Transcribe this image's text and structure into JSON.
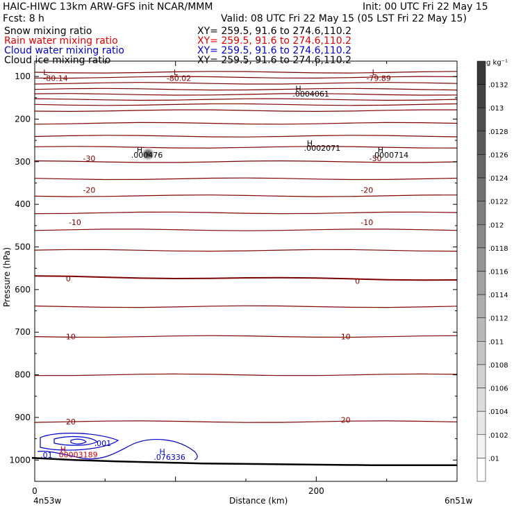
{
  "header": {
    "title": "HAIC-HIWC 13km ARW-GFS init   NCAR/MMM",
    "fcst": "Fcst:    8 h",
    "init": "Init: 00 UTC Fri 22 May 15",
    "valid": "Valid: 08 UTC Fri 22 May 15 (05 LST Fri 22 May 15)"
  },
  "fields": [
    {
      "name": "Snow mixing ratio",
      "xy": "XY= 259.5, 91.6 to 274.6,110.2",
      "color": "#000000"
    },
    {
      "name": "Rain water mixing ratio",
      "xy": "XY= 259.5, 91.6 to 274.6,110.2",
      "color": "#dd0000"
    },
    {
      "name": "Cloud water mixing ratio",
      "xy": "XY= 259.5, 91.6 to 274.6,110.2",
      "color": "#0000cc"
    },
    {
      "name": "Cloud ice mixing ratio",
      "xy": "XY= 259.5, 91.6 to 274.6,110.2",
      "color": "#000000"
    }
  ],
  "colors": {
    "temperature_contour": "#800000",
    "cloud_water_contour": "#0000cc",
    "rain_label": "#cc0000",
    "terrain": "#000000"
  },
  "chart_data": {
    "type": "cross-section",
    "xlabel": "Distance (km)",
    "ylabel": "Pressure (hPa)",
    "xlim": [
      0,
      300
    ],
    "ylim": [
      1050,
      50
    ],
    "x_ticks": [
      0,
      200
    ],
    "y_ticks": [
      100,
      200,
      300,
      400,
      500,
      600,
      700,
      800,
      900,
      1000
    ],
    "left_location": "4n53w",
    "right_location": "6n51w",
    "colorbar": {
      "unit": "g kg⁻¹",
      "labels": [
        ".0132",
        ".013",
        ".0128",
        ".0126",
        ".0124",
        ".0122",
        ".012",
        ".0118",
        ".0116",
        ".0114",
        ".0112",
        ".011",
        ".0108",
        ".0106",
        ".0104",
        ".0102",
        ".01"
      ]
    },
    "temperature_labels": [
      {
        "text": "-80.14",
        "x": 8,
        "p": 104,
        "color": "#800000"
      },
      {
        "text": "-80.02",
        "x": 95,
        "p": 104,
        "color": "#800000"
      },
      {
        "text": "-79.89",
        "x": 236,
        "p": 104,
        "color": "#800000"
      },
      {
        "text": "-30",
        "x": 36,
        "p": 292,
        "color": "#800000"
      },
      {
        "text": "-30",
        "x": 238,
        "p": 292,
        "color": "#800000"
      },
      {
        "text": "-20",
        "x": 36,
        "p": 366,
        "color": "#800000"
      },
      {
        "text": "-20",
        "x": 232,
        "p": 366,
        "color": "#800000"
      },
      {
        "text": "-10",
        "x": 26,
        "p": 442,
        "color": "#800000"
      },
      {
        "text": "-10",
        "x": 232,
        "p": 442,
        "color": "#800000"
      },
      {
        "text": "0",
        "x": 24,
        "p": 574,
        "color": "#800000"
      },
      {
        "text": "0",
        "x": 228,
        "p": 580,
        "color": "#800000"
      },
      {
        "text": "10",
        "x": 24,
        "p": 710,
        "color": "#800000"
      },
      {
        "text": "10",
        "x": 218,
        "p": 710,
        "color": "#800000"
      },
      {
        "text": "20",
        "x": 24,
        "p": 910,
        "color": "#800000"
      },
      {
        "text": "20",
        "x": 218,
        "p": 906,
        "color": "#800000"
      }
    ],
    "extrema": [
      {
        "mark": "L",
        "x": 8,
        "p": 90,
        "color": "#800000"
      },
      {
        "mark": "L",
        "x": 100,
        "p": 90,
        "color": "#800000"
      },
      {
        "mark": "L",
        "x": 240,
        "p": 90,
        "color": "#800000"
      },
      {
        "mark": "H",
        "x": 186,
        "p": 128,
        "color": "#000000"
      },
      {
        "mark": "H",
        "x": 194,
        "p": 256,
        "color": "#000000"
      },
      {
        "mark": "H",
        "x": 74,
        "p": 272,
        "color": "#000000"
      },
      {
        "mark": "H",
        "x": 244,
        "p": 272,
        "color": "#000000"
      },
      {
        "mark": "H",
        "x": 20,
        "p": 974,
        "color": "#cc0000"
      },
      {
        "mark": "H",
        "x": 90,
        "p": 980,
        "color": "#0000cc"
      }
    ],
    "value_labels": [
      {
        "text": ".0004061",
        "x": 184,
        "p": 141,
        "color": "#000000"
      },
      {
        "text": ".0002071",
        "x": 192,
        "p": 268,
        "color": "#000000"
      },
      {
        "text": ".000476",
        "x": 70,
        "p": 284,
        "color": "#000000"
      },
      {
        "text": ".0000714",
        "x": 240,
        "p": 284,
        "color": "#000000"
      },
      {
        "text": ".001",
        "x": 44,
        "p": 960,
        "color": "#0000cc"
      },
      {
        "text": ".076336",
        "x": 86,
        "p": 993,
        "color": "#0000cc"
      },
      {
        "text": ".01",
        "x": 6,
        "p": 988,
        "color": "#0000cc"
      },
      {
        "text": "00003189",
        "x": 19,
        "p": 987,
        "color": "#cc0000"
      }
    ],
    "isotherm_pressures": [
      90,
      102,
      116,
      130,
      142,
      154,
      166,
      180,
      210,
      240,
      266,
      300,
      340,
      380,
      420,
      460,
      508,
      570,
      640,
      710,
      800,
      910
    ],
    "terrain": [
      {
        "x": 0,
        "p": 995
      },
      {
        "x": 30,
        "p": 1000
      },
      {
        "x": 60,
        "p": 1003
      },
      {
        "x": 120,
        "p": 1008
      },
      {
        "x": 180,
        "p": 1010
      },
      {
        "x": 240,
        "p": 1012
      },
      {
        "x": 300,
        "p": 1012
      }
    ]
  }
}
